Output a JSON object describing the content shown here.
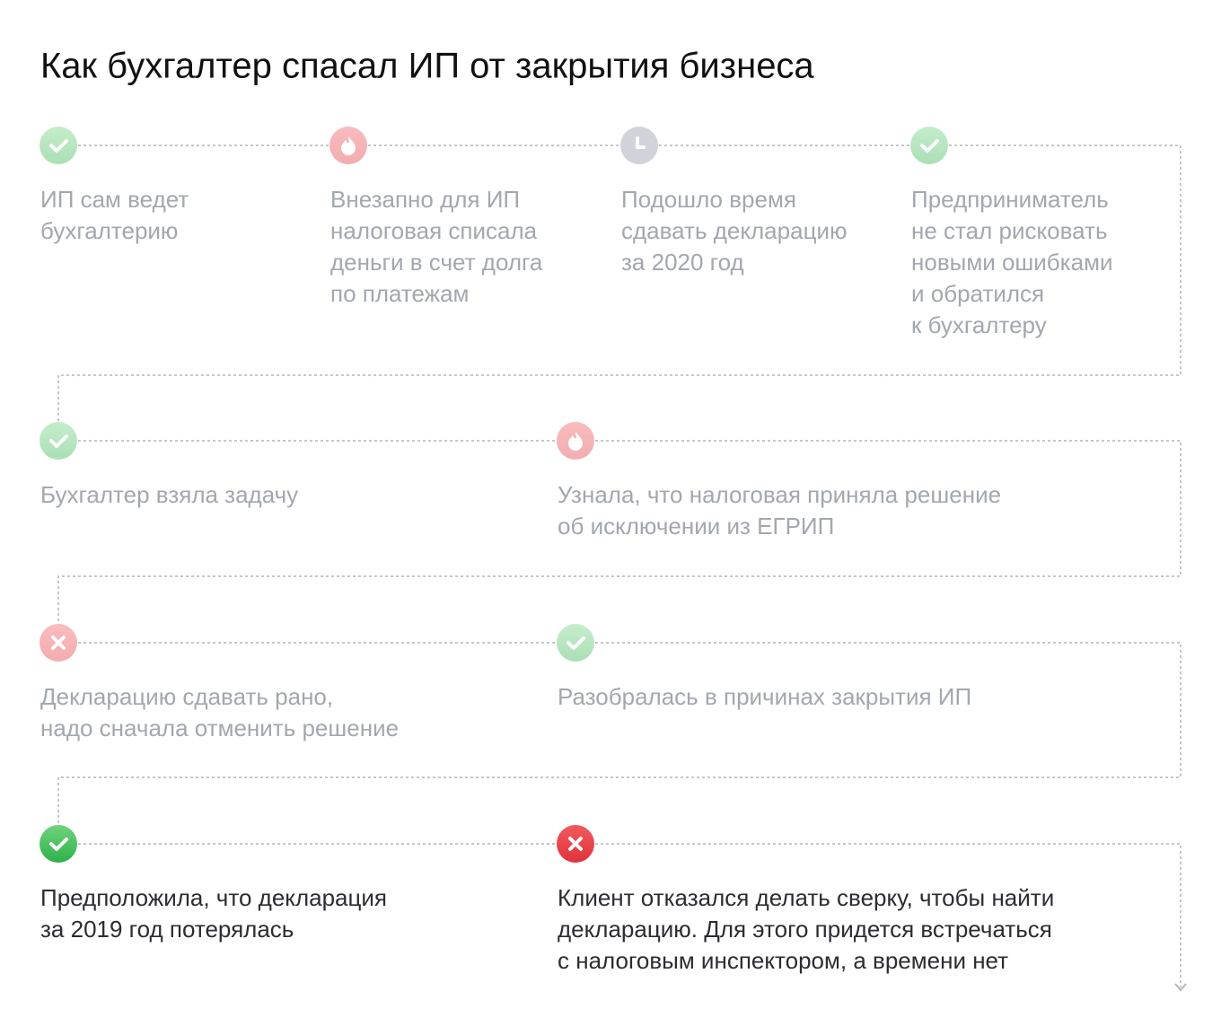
{
  "title": "Как бухгалтер спасал ИП от закрытия бизнеса",
  "steps": [
    {
      "lines": [
        "ИП сам ведет",
        "бухгалтерию"
      ]
    },
    {
      "lines": [
        "Внезапно для ИП",
        "налоговая списала",
        "деньги в счет долга",
        "по платежам"
      ]
    },
    {
      "lines": [
        "Подошло время",
        "сдавать декларацию",
        "за 2020 год"
      ]
    },
    {
      "lines": [
        "Предприниматель",
        "не стал рисковать",
        "новыми ошибками",
        "и обратился",
        "к бухгалтеру"
      ]
    },
    {
      "lines": [
        "Бухгалтер взяла задачу"
      ]
    },
    {
      "lines": [
        "Узнала, что налоговая приняла решение",
        "об исключении из ЕГРИП"
      ]
    },
    {
      "lines": [
        "Декларацию сдавать рано,",
        "надо сначала отменить решение"
      ]
    },
    {
      "lines": [
        "Разобралась в причинах закрытия ИП"
      ]
    },
    {
      "lines": [
        "Предположила, что декларация",
        "за 2019 год потерялась"
      ]
    },
    {
      "lines": [
        "Клиент отказался делать сверку, чтобы найти",
        "декларацию. Для этого придется встречаться",
        "с налоговым инспектором, а времени нет"
      ]
    }
  ]
}
